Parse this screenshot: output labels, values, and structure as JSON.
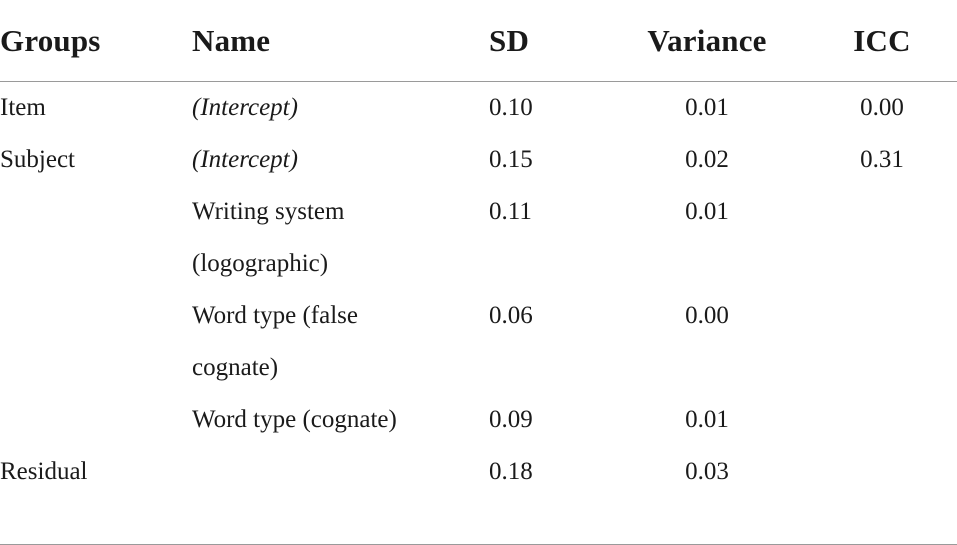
{
  "table": {
    "headers": [
      "Groups",
      "Name",
      "SD",
      "Variance",
      "ICC"
    ],
    "rows": [
      {
        "groups": "Item",
        "name": "(Intercept)",
        "name_italic": true,
        "sd": "0.10",
        "variance": "0.01",
        "icc": "0.00"
      },
      {
        "groups": "Subject",
        "name": "(Intercept)",
        "name_italic": true,
        "sd": "0.15",
        "variance": "0.02",
        "icc": "0.31"
      },
      {
        "groups": "",
        "name": "Writing system",
        "sd": "0.11",
        "variance": "0.01",
        "icc": ""
      },
      {
        "groups": "",
        "name": "(logographic)",
        "sd": "",
        "variance": "",
        "icc": ""
      },
      {
        "groups": "",
        "name": "Word type (false",
        "sd": "0.06",
        "variance": "0.00",
        "icc": ""
      },
      {
        "groups": "",
        "name": "cognate)",
        "sd": "",
        "variance": "",
        "icc": ""
      },
      {
        "groups": "",
        "name": "Word type (cognate)",
        "sd": "0.09",
        "variance": "0.01",
        "icc": ""
      },
      {
        "groups": "Residual",
        "name": "",
        "sd": "0.18",
        "variance": "0.03",
        "icc": ""
      }
    ]
  }
}
